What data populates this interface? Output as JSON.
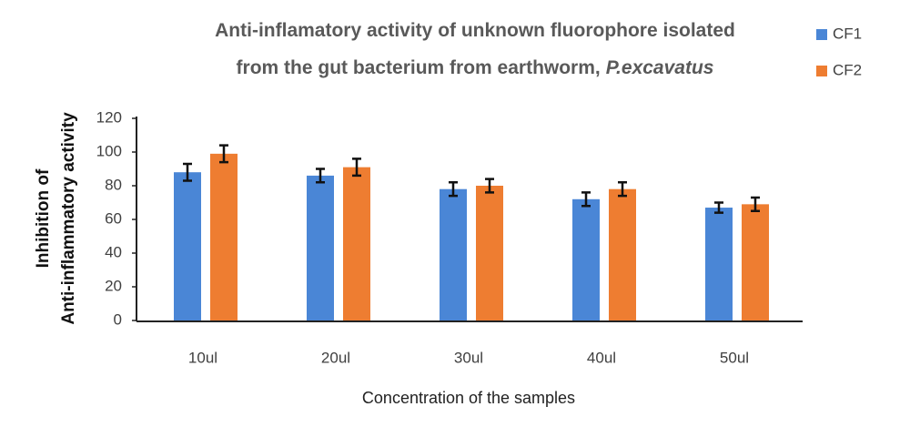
{
  "chart_data": {
    "type": "bar",
    "title": [
      "Anti-inflamatory activity of unknown fluorophore isolated",
      "from the gut bacterium from earthworm,",
      "P.excavatus"
    ],
    "x_label": "Concentration of the samples",
    "y_label": [
      "Inhibition of",
      "Anti-inflammatory activity"
    ],
    "categories": [
      "10ul",
      "20ul",
      "30ul",
      "40ul",
      "50ul"
    ],
    "series": [
      {
        "name": "CF1",
        "color": "#4a86d6",
        "values": [
          88,
          86,
          78,
          72,
          67
        ],
        "errors": [
          5,
          4,
          4,
          4,
          3
        ]
      },
      {
        "name": "CF2",
        "color": "#ee7d31",
        "values": [
          99,
          91,
          80,
          78,
          69
        ],
        "errors": [
          5,
          5,
          4,
          4,
          4
        ]
      }
    ],
    "ylim": [
      0,
      120
    ],
    "yticks": [
      0,
      20,
      40,
      60,
      80,
      100,
      120
    ],
    "grid": false
  }
}
